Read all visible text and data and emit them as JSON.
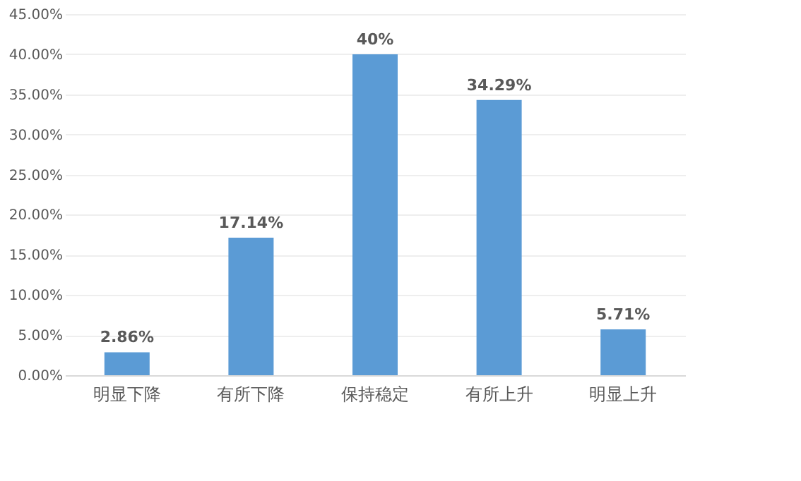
{
  "chart_data": {
    "type": "bar",
    "categories": [
      "明显下降",
      "有所下降",
      "保持稳定",
      "有所上升",
      "明显上升"
    ],
    "values": [
      2.86,
      17.14,
      40,
      34.29,
      5.71
    ],
    "value_labels": [
      "2.86%",
      "17.14%",
      "40%",
      "34.29%",
      "5.71%"
    ],
    "color": "#5b9bd5",
    "ylim": [
      0,
      45
    ],
    "yticks": [
      {
        "value": 0,
        "label": "0.00%"
      },
      {
        "value": 5,
        "label": "5.00%"
      },
      {
        "value": 10,
        "label": "10.00%"
      },
      {
        "value": 15,
        "label": "15.00%"
      },
      {
        "value": 20,
        "label": "20.00%"
      },
      {
        "value": 25,
        "label": "25.00%"
      },
      {
        "value": 30,
        "label": "30.00%"
      },
      {
        "value": 35,
        "label": "35.00%"
      },
      {
        "value": 40,
        "label": "40.00%"
      },
      {
        "value": 45,
        "label": "45.00%"
      }
    ],
    "grid": "y"
  }
}
